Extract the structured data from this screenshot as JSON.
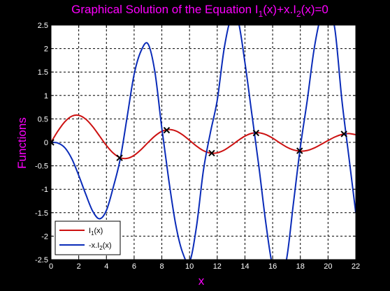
{
  "chart_data": {
    "type": "line",
    "title": {
      "prefix": "Graphical Solution of the Equation I",
      "sub1": "1",
      "mid": "(x)+x.I",
      "sub2": "2",
      "suffix": "(x)=0"
    },
    "xlabel": "x",
    "ylabel": "Functions",
    "xlim": [
      0,
      22
    ],
    "ylim": [
      -2.5,
      2.5
    ],
    "xticks": [
      0,
      2,
      4,
      6,
      8,
      10,
      12,
      14,
      16,
      18,
      20,
      22
    ],
    "yticks": [
      -2.5,
      -2,
      -1.5,
      -1,
      -0.5,
      0,
      0.5,
      1,
      1.5,
      2,
      2.5
    ],
    "xtick_labels": [
      "0",
      "2",
      "4",
      "6",
      "8",
      "10",
      "12",
      "14",
      "16",
      "18",
      "20",
      "22"
    ],
    "ytick_labels": [
      "-2.5",
      "-2",
      "-1.5",
      "-1",
      "-0.5",
      "0",
      "0.5",
      "1",
      "1.5",
      "2",
      "2.5"
    ],
    "grid": true,
    "legend_position": "bottom-left",
    "series": [
      {
        "legend": {
          "prefix": "I",
          "sub": "1",
          "suffix": "(x)"
        },
        "color": "#cc1111",
        "x": [
          0,
          0.5,
          1,
          1.5,
          2,
          2.5,
          3,
          3.5,
          4,
          4.5,
          5,
          5.5,
          6,
          6.5,
          7,
          7.5,
          8,
          8.5,
          9,
          9.5,
          10,
          10.5,
          11,
          11.5,
          12,
          12.5,
          13,
          13.5,
          14,
          14.5,
          15,
          15.5,
          16,
          16.5,
          17,
          17.5,
          18,
          18.5,
          19,
          19.5,
          20,
          20.5,
          21,
          21.5,
          22
        ],
        "y": [
          0,
          0.242,
          0.44,
          0.558,
          0.577,
          0.497,
          0.339,
          0.137,
          -0.066,
          -0.231,
          -0.328,
          -0.341,
          -0.277,
          -0.154,
          -0.005,
          0.135,
          0.235,
          0.273,
          0.245,
          0.161,
          0.043,
          -0.079,
          -0.177,
          -0.228,
          -0.223,
          -0.166,
          -0.07,
          0.038,
          0.133,
          0.193,
          0.205,
          0.167,
          0.09,
          -0.007,
          -0.098,
          -0.161,
          -0.188,
          -0.173,
          -0.12,
          -0.043,
          0.039,
          0.115,
          0.169,
          0.188,
          0.163
        ]
      },
      {
        "legend": {
          "prefix": "-x.I",
          "sub": "2",
          "suffix": "(x)"
        },
        "color": "#0a2bb8",
        "x": [
          0,
          0.5,
          1,
          1.5,
          2,
          2.5,
          3,
          3.5,
          4,
          4.5,
          5,
          5.5,
          6,
          6.5,
          7,
          7.5,
          8,
          8.5,
          9,
          9.5,
          10,
          10.5,
          11,
          11.5,
          12,
          12.5,
          13,
          13.5,
          14,
          14.5,
          15,
          15.5,
          16,
          16.5,
          17,
          17.5,
          18,
          18.5,
          19,
          19.5,
          20,
          20.5,
          21,
          21.5,
          22
        ],
        "y": [
          0,
          -0.015,
          -0.115,
          -0.349,
          -0.706,
          -1.1,
          -1.462,
          -1.63,
          -1.45,
          -0.95,
          -0.35,
          0.55,
          1.45,
          1.95,
          2.1,
          1.5,
          0.3,
          -0.8,
          -1.75,
          -2.35,
          -2.55,
          -1.8,
          -0.6,
          0.2,
          0.9,
          2.0,
          2.65,
          2.6,
          1.7,
          0.6,
          -0.5,
          -1.7,
          -2.65,
          -2.85,
          -2.5,
          -1.3,
          -0.1,
          0.9,
          2.0,
          2.7,
          2.9,
          2.4,
          0.9,
          -0.3,
          -1.5
        ]
      }
    ],
    "intersections": {
      "x": [
        0,
        4.95,
        8.35,
        11.6,
        14.8,
        17.95,
        21.15
      ],
      "y": [
        0,
        -0.33,
        0.26,
        -0.23,
        0.2,
        -0.18,
        0.18
      ]
    }
  }
}
